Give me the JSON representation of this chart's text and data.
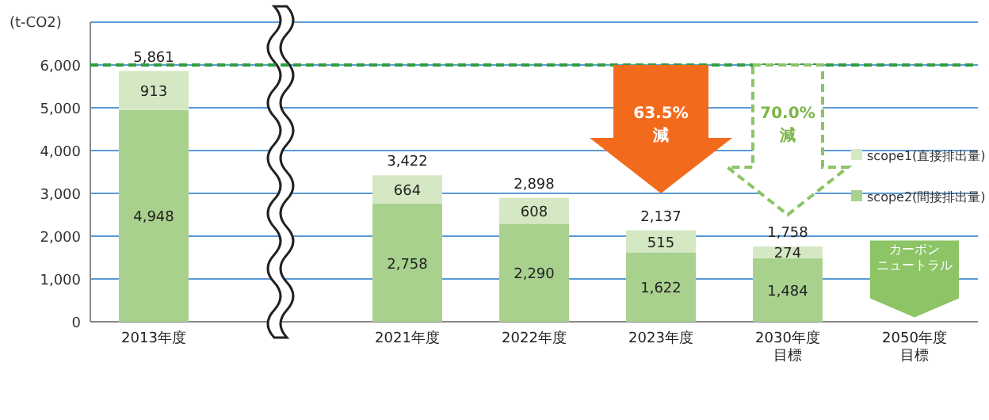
{
  "chart_data": {
    "type": "bar",
    "stacked": true,
    "ylabel": "(t-CO2)",
    "categories": [
      "2013年度",
      null,
      "2021年度",
      "2022年度",
      "2023年度",
      "2030年度目標",
      "2050年度目標"
    ],
    "series": [
      {
        "name": "scope2(間接排出量)",
        "color": "#a9d18e",
        "values": [
          4948,
          null,
          2758,
          2290,
          1622,
          1484,
          null
        ],
        "value_labels": [
          "4,948",
          null,
          "2,758",
          "2,290",
          "1,622",
          "1,484",
          null
        ]
      },
      {
        "name": "scope1(直接排出量)",
        "color": "#d5e8c4",
        "values": [
          913,
          null,
          664,
          608,
          515,
          274,
          null
        ],
        "value_labels": [
          "913",
          null,
          "664",
          "608",
          "515",
          "274",
          null
        ]
      }
    ],
    "totals": [
      "5,861",
      null,
      "3,422",
      "2,898",
      "2,137",
      "1,758",
      null
    ],
    "ylim": [
      0,
      7000
    ],
    "yticks": [
      {
        "value": 0,
        "label": "0"
      },
      {
        "value": 1000,
        "label": "1,000"
      },
      {
        "value": 2000,
        "label": "2,000"
      },
      {
        "value": 3000,
        "label": "3,000"
      },
      {
        "value": 4000,
        "label": "4,000"
      },
      {
        "value": 5000,
        "label": "5,000"
      },
      {
        "value": 6000,
        "label": "6,000"
      },
      {
        "value": 7000,
        "label": null
      }
    ],
    "grid": "y",
    "legend": "right",
    "ref_lines": [
      {
        "axis": "y",
        "value": 6000,
        "color": "#2e9e3e",
        "line_style": "dashed"
      }
    ],
    "annotations": [
      "63.5%減",
      "70.0%減",
      "カーボンニュートラル"
    ]
  }
}
